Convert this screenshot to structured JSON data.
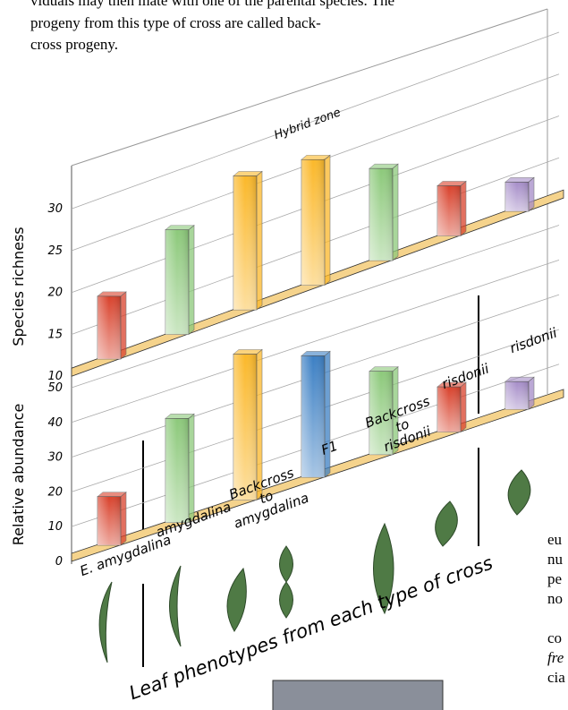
{
  "text": {
    "paragraph": [
      "viduals may then mate with one of the parental species. The",
      "progeny from this type of cross are called back-",
      "cross progeny."
    ],
    "side": [
      "eu",
      "nu",
      "pe",
      "no",
      "co",
      "fre",
      "cia"
    ]
  },
  "chart_data": [
    {
      "type": "bar",
      "y_label": "Species richness",
      "annotation": "Hybrid zone",
      "values": [
        17.5,
        22.5,
        26,
        25,
        21,
        16,
        13.5
      ],
      "colors": [
        "#d9412b",
        "#8cc97a",
        "#fbb829",
        "#fbb829",
        "#8cc97a",
        "#d9412b",
        "#a58cc8"
      ],
      "ylim": [
        10,
        32
      ],
      "yticks": [
        10,
        15,
        20,
        25,
        30
      ],
      "grid": true
    },
    {
      "type": "bar",
      "y_label": "Relative abundance",
      "x_label": "Leaf phenotypes from each type of cross",
      "categories": [
        "E. amygdalina",
        "amygdalina",
        "Backcross to amygdalina",
        "F1",
        "Backcross to risdonii",
        "risdonii",
        "risdonii"
      ],
      "values": [
        14,
        30,
        42,
        35,
        24,
        13,
        8
      ],
      "colors": [
        "#d9412b",
        "#8cc97a",
        "#fbb829",
        "#3b7fc4",
        "#8cc97a",
        "#d9412b",
        "#a58cc8"
      ],
      "ylim": [
        0,
        50
      ],
      "yticks": [
        0,
        10,
        20,
        30,
        40,
        50
      ],
      "grid": true
    }
  ]
}
